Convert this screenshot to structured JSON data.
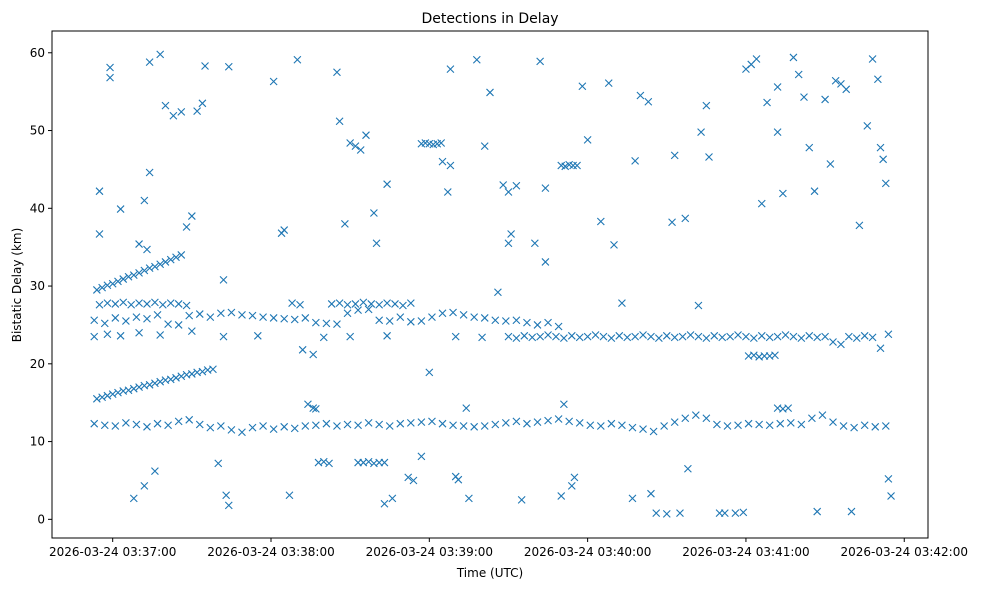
{
  "chart_data": {
    "type": "scatter",
    "title": "Detections in Delay",
    "xlabel": "Time (UTC)",
    "ylabel": "Bistatic Delay (km)",
    "x_units": "seconds relative to 2026-03-24 03:37:00",
    "xlim": [
      -23,
      309
    ],
    "ylim": [
      -2.4,
      62.8
    ],
    "x_ticks": [
      0,
      60,
      120,
      180,
      240,
      300
    ],
    "x_tick_labels": [
      "2026-03-24 03:37:00",
      "2026-03-24 03:38:00",
      "2026-03-24 03:39:00",
      "2026-03-24 03:40:00",
      "2026-03-24 03:41:00",
      "2026-03-24 03:42:00"
    ],
    "y_ticks": [
      0,
      10,
      20,
      30,
      40,
      50,
      60
    ],
    "y_tick_labels": [
      "0",
      "10",
      "20",
      "30",
      "40",
      "50",
      "60"
    ],
    "marker": "x",
    "color": "#1f77b4",
    "grid": false,
    "points": [
      [
        -6,
        15.5
      ],
      [
        -4,
        15.7
      ],
      [
        -2,
        15.9
      ],
      [
        0,
        16.1
      ],
      [
        2,
        16.3
      ],
      [
        4,
        16.5
      ],
      [
        6,
        16.6
      ],
      [
        8,
        16.8
      ],
      [
        10,
        17.0
      ],
      [
        12,
        17.2
      ],
      [
        14,
        17.3
      ],
      [
        16,
        17.5
      ],
      [
        18,
        17.7
      ],
      [
        20,
        17.9
      ],
      [
        22,
        18.0
      ],
      [
        24,
        18.2
      ],
      [
        26,
        18.4
      ],
      [
        28,
        18.6
      ],
      [
        30,
        18.7
      ],
      [
        32,
        18.9
      ],
      [
        34,
        19.0
      ],
      [
        36,
        19.2
      ],
      [
        38,
        19.3
      ],
      [
        -6,
        29.5
      ],
      [
        -4,
        29.8
      ],
      [
        -2,
        30.1
      ],
      [
        0,
        30.3
      ],
      [
        2,
        30.6
      ],
      [
        4,
        30.9
      ],
      [
        6,
        31.2
      ],
      [
        8,
        31.4
      ],
      [
        10,
        31.7
      ],
      [
        12,
        32.0
      ],
      [
        14,
        32.3
      ],
      [
        16,
        32.5
      ],
      [
        18,
        32.8
      ],
      [
        20,
        33.1
      ],
      [
        22,
        33.4
      ],
      [
        24,
        33.7
      ],
      [
        26,
        34.0
      ],
      [
        -7,
        12.3
      ],
      [
        -3,
        12.1
      ],
      [
        1,
        12.0
      ],
      [
        5,
        12.4
      ],
      [
        9,
        12.2
      ],
      [
        13,
        11.9
      ],
      [
        17,
        12.3
      ],
      [
        21,
        12.1
      ],
      [
        25,
        12.6
      ],
      [
        29,
        12.8
      ],
      [
        33,
        12.2
      ],
      [
        37,
        11.8
      ],
      [
        41,
        12.0
      ],
      [
        45,
        11.5
      ],
      [
        49,
        11.2
      ],
      [
        53,
        11.8
      ],
      [
        57,
        12.0
      ],
      [
        61,
        11.6
      ],
      [
        65,
        11.9
      ],
      [
        69,
        11.7
      ],
      [
        73,
        12.0
      ],
      [
        77,
        12.1
      ],
      [
        81,
        12.3
      ],
      [
        85,
        12.0
      ],
      [
        89,
        12.2
      ],
      [
        93,
        12.1
      ],
      [
        97,
        12.4
      ],
      [
        101,
        12.2
      ],
      [
        105,
        12.0
      ],
      [
        109,
        12.3
      ],
      [
        113,
        12.4
      ],
      [
        117,
        12.5
      ],
      [
        121,
        12.6
      ],
      [
        125,
        12.3
      ],
      [
        129,
        12.1
      ],
      [
        133,
        12.0
      ],
      [
        137,
        11.9
      ],
      [
        141,
        12.0
      ],
      [
        145,
        12.2
      ],
      [
        149,
        12.4
      ],
      [
        153,
        12.6
      ],
      [
        157,
        12.3
      ],
      [
        161,
        12.5
      ],
      [
        165,
        12.7
      ],
      [
        169,
        12.9
      ],
      [
        173,
        12.6
      ],
      [
        177,
        12.4
      ],
      [
        181,
        12.1
      ],
      [
        185,
        12.0
      ],
      [
        189,
        12.3
      ],
      [
        193,
        12.1
      ],
      [
        197,
        11.8
      ],
      [
        201,
        11.6
      ],
      [
        205,
        11.3
      ],
      [
        209,
        12.0
      ],
      [
        213,
        12.5
      ],
      [
        217,
        13.0
      ],
      [
        221,
        13.4
      ],
      [
        225,
        13.0
      ],
      [
        229,
        12.2
      ],
      [
        233,
        12.0
      ],
      [
        237,
        12.1
      ],
      [
        241,
        12.3
      ],
      [
        245,
        12.2
      ],
      [
        249,
        12.1
      ],
      [
        253,
        12.3
      ],
      [
        257,
        12.4
      ],
      [
        261,
        12.2
      ],
      [
        265,
        13.0
      ],
      [
        269,
        13.4
      ],
      [
        273,
        12.5
      ],
      [
        277,
        12.0
      ],
      [
        281,
        11.8
      ],
      [
        285,
        12.1
      ],
      [
        289,
        11.9
      ],
      [
        293,
        12.0
      ],
      [
        -7,
        25.6
      ],
      [
        -3,
        25.2
      ],
      [
        1,
        25.9
      ],
      [
        5,
        25.5
      ],
      [
        9,
        26.0
      ],
      [
        13,
        25.8
      ],
      [
        17,
        26.3
      ],
      [
        21,
        25.1
      ],
      [
        25,
        25.0
      ],
      [
        29,
        26.2
      ],
      [
        33,
        26.4
      ],
      [
        37,
        26.0
      ],
      [
        41,
        26.5
      ],
      [
        45,
        26.6
      ],
      [
        49,
        26.3
      ],
      [
        53,
        26.2
      ],
      [
        57,
        26.0
      ],
      [
        61,
        25.9
      ],
      [
        65,
        25.8
      ],
      [
        69,
        25.7
      ],
      [
        73,
        25.9
      ],
      [
        77,
        25.3
      ],
      [
        81,
        25.2
      ],
      [
        85,
        25.1
      ],
      [
        89,
        26.5
      ],
      [
        93,
        26.9
      ],
      [
        97,
        27.0
      ],
      [
        101,
        25.6
      ],
      [
        105,
        25.5
      ],
      [
        109,
        26.0
      ],
      [
        113,
        25.4
      ],
      [
        117,
        25.5
      ],
      [
        121,
        26.0
      ],
      [
        125,
        26.5
      ],
      [
        129,
        26.6
      ],
      [
        133,
        26.3
      ],
      [
        137,
        26.0
      ],
      [
        141,
        25.9
      ],
      [
        145,
        25.6
      ],
      [
        149,
        25.5
      ],
      [
        153,
        25.6
      ],
      [
        157,
        25.3
      ],
      [
        161,
        25.0
      ],
      [
        165,
        25.3
      ],
      [
        169,
        24.8
      ],
      [
        -7,
        23.5
      ],
      [
        -2,
        23.8
      ],
      [
        3,
        23.6
      ],
      [
        10,
        24.0
      ],
      [
        18,
        23.7
      ],
      [
        30,
        24.2
      ],
      [
        42,
        23.5
      ],
      [
        55,
        23.6
      ],
      [
        80,
        23.4
      ],
      [
        90,
        23.5
      ],
      [
        104,
        23.6
      ],
      [
        130,
        23.5
      ],
      [
        140,
        23.4
      ],
      [
        150,
        23.5
      ],
      [
        153,
        23.3
      ],
      [
        156,
        23.6
      ],
      [
        159,
        23.4
      ],
      [
        162,
        23.5
      ],
      [
        165,
        23.7
      ],
      [
        168,
        23.5
      ],
      [
        171,
        23.3
      ],
      [
        174,
        23.6
      ],
      [
        177,
        23.4
      ],
      [
        180,
        23.5
      ],
      [
        183,
        23.7
      ],
      [
        186,
        23.5
      ],
      [
        189,
        23.3
      ],
      [
        192,
        23.6
      ],
      [
        195,
        23.4
      ],
      [
        198,
        23.5
      ],
      [
        201,
        23.7
      ],
      [
        204,
        23.5
      ],
      [
        207,
        23.3
      ],
      [
        210,
        23.6
      ],
      [
        213,
        23.4
      ],
      [
        216,
        23.5
      ],
      [
        219,
        23.7
      ],
      [
        222,
        23.5
      ],
      [
        225,
        23.3
      ],
      [
        228,
        23.6
      ],
      [
        231,
        23.4
      ],
      [
        234,
        23.5
      ],
      [
        237,
        23.7
      ],
      [
        240,
        23.5
      ],
      [
        243,
        23.3
      ],
      [
        246,
        23.6
      ],
      [
        249,
        23.4
      ],
      [
        252,
        23.5
      ],
      [
        255,
        23.7
      ],
      [
        258,
        23.5
      ],
      [
        261,
        23.3
      ],
      [
        264,
        23.6
      ],
      [
        267,
        23.4
      ],
      [
        270,
        23.5
      ],
      [
        273,
        22.8
      ],
      [
        276,
        22.5
      ],
      [
        279,
        23.5
      ],
      [
        282,
        23.3
      ],
      [
        285,
        23.6
      ],
      [
        288,
        23.4
      ],
      [
        291,
        22.0
      ],
      [
        294,
        23.8
      ],
      [
        -5,
        27.6
      ],
      [
        -2,
        27.8
      ],
      [
        1,
        27.7
      ],
      [
        4,
        27.9
      ],
      [
        7,
        27.6
      ],
      [
        10,
        27.8
      ],
      [
        13,
        27.7
      ],
      [
        16,
        27.9
      ],
      [
        19,
        27.6
      ],
      [
        22,
        27.8
      ],
      [
        25,
        27.7
      ],
      [
        28,
        27.5
      ],
      [
        68,
        27.8
      ],
      [
        71,
        27.6
      ],
      [
        83,
        27.7
      ],
      [
        86,
        27.8
      ],
      [
        89,
        27.6
      ],
      [
        92,
        27.7
      ],
      [
        95,
        27.9
      ],
      [
        98,
        27.7
      ],
      [
        101,
        27.6
      ],
      [
        104,
        27.8
      ],
      [
        107,
        27.7
      ],
      [
        110,
        27.5
      ],
      [
        113,
        27.8
      ],
      [
        117,
        48.3
      ],
      [
        118.5,
        48.4
      ],
      [
        120,
        48.3
      ],
      [
        121.5,
        48.2
      ],
      [
        123,
        48.3
      ],
      [
        124.5,
        48.4
      ],
      [
        170,
        45.5
      ],
      [
        171.5,
        45.4
      ],
      [
        173,
        45.6
      ],
      [
        174.5,
        45.5
      ],
      [
        176,
        45.5
      ],
      [
        78,
        7.3
      ],
      [
        80,
        7.4
      ],
      [
        82,
        7.2
      ],
      [
        93,
        7.3
      ],
      [
        95,
        7.3
      ],
      [
        97,
        7.4
      ],
      [
        99,
        7.2
      ],
      [
        101,
        7.3
      ],
      [
        103,
        7.3
      ],
      [
        241,
        21.0
      ],
      [
        243,
        21.1
      ],
      [
        245,
        20.9
      ],
      [
        247,
        21.0
      ],
      [
        249,
        21.0
      ],
      [
        251,
        21.1
      ],
      [
        76,
        14.3
      ],
      [
        77,
        14.2
      ],
      [
        252,
        14.3
      ],
      [
        254,
        14.2
      ],
      [
        256,
        14.3
      ],
      [
        -5,
        42.2
      ],
      [
        -5,
        36.7
      ],
      [
        -1,
        58.1
      ],
      [
        -1,
        56.8
      ],
      [
        3,
        39.9
      ],
      [
        10,
        35.4
      ],
      [
        12,
        41.0
      ],
      [
        13,
        34.7
      ],
      [
        14,
        44.6
      ],
      [
        12,
        4.3
      ],
      [
        16,
        6.2
      ],
      [
        8,
        2.7
      ],
      [
        20,
        53.2
      ],
      [
        23,
        51.9
      ],
      [
        26,
        52.4
      ],
      [
        28,
        37.6
      ],
      [
        30,
        39.0
      ],
      [
        18,
        59.8
      ],
      [
        14,
        58.8
      ],
      [
        32,
        52.5
      ],
      [
        34,
        53.5
      ],
      [
        35,
        58.3
      ],
      [
        44,
        58.2
      ],
      [
        42,
        30.8
      ],
      [
        40,
        7.2
      ],
      [
        43,
        3.1
      ],
      [
        44,
        1.8
      ],
      [
        61,
        56.3
      ],
      [
        64,
        36.8
      ],
      [
        65,
        37.2
      ],
      [
        67,
        3.1
      ],
      [
        70,
        59.1
      ],
      [
        72,
        21.8
      ],
      [
        74,
        14.8
      ],
      [
        76,
        21.2
      ],
      [
        85,
        57.5
      ],
      [
        86,
        51.2
      ],
      [
        88,
        38.0
      ],
      [
        90,
        48.4
      ],
      [
        92,
        48.0
      ],
      [
        94,
        47.5
      ],
      [
        96,
        49.4
      ],
      [
        99,
        39.4
      ],
      [
        100,
        35.5
      ],
      [
        104,
        43.1
      ],
      [
        106,
        2.7
      ],
      [
        103,
        2.0
      ],
      [
        112,
        5.4
      ],
      [
        114,
        5.0
      ],
      [
        117,
        8.1
      ],
      [
        120,
        18.9
      ],
      [
        125,
        46.0
      ],
      [
        127,
        42.1
      ],
      [
        128,
        57.9
      ],
      [
        128,
        45.5
      ],
      [
        130,
        5.5
      ],
      [
        131,
        5.1
      ],
      [
        134,
        14.3
      ],
      [
        135,
        2.7
      ],
      [
        138,
        59.1
      ],
      [
        141,
        48.0
      ],
      [
        143,
        54.9
      ],
      [
        146,
        29.2
      ],
      [
        148,
        43.0
      ],
      [
        150,
        42.1
      ],
      [
        150,
        35.5
      ],
      [
        151,
        36.7
      ],
      [
        153,
        42.9
      ],
      [
        155,
        2.5
      ],
      [
        160,
        35.5
      ],
      [
        162,
        58.9
      ],
      [
        164,
        42.6
      ],
      [
        164,
        33.1
      ],
      [
        170,
        3.0
      ],
      [
        171,
        14.8
      ],
      [
        174,
        4.3
      ],
      [
        175,
        5.4
      ],
      [
        178,
        55.7
      ],
      [
        180,
        48.8
      ],
      [
        185,
        38.3
      ],
      [
        188,
        56.1
      ],
      [
        190,
        35.3
      ],
      [
        193,
        27.8
      ],
      [
        197,
        2.7
      ],
      [
        198,
        46.1
      ],
      [
        200,
        54.5
      ],
      [
        203,
        53.7
      ],
      [
        204,
        3.3
      ],
      [
        206,
        0.8
      ],
      [
        210,
        0.7
      ],
      [
        212,
        38.2
      ],
      [
        213,
        46.8
      ],
      [
        215,
        0.8
      ],
      [
        217,
        38.7
      ],
      [
        218,
        6.5
      ],
      [
        222,
        27.5
      ],
      [
        223,
        49.8
      ],
      [
        225,
        53.2
      ],
      [
        226,
        46.6
      ],
      [
        230,
        0.8
      ],
      [
        232,
        0.8
      ],
      [
        236,
        0.8
      ],
      [
        239,
        0.9
      ],
      [
        240,
        57.9
      ],
      [
        242,
        58.5
      ],
      [
        244,
        59.2
      ],
      [
        246,
        40.6
      ],
      [
        248,
        53.6
      ],
      [
        252,
        55.6
      ],
      [
        252,
        49.8
      ],
      [
        254,
        41.9
      ],
      [
        258,
        59.4
      ],
      [
        260,
        57.2
      ],
      [
        262,
        54.3
      ],
      [
        264,
        47.8
      ],
      [
        266,
        42.2
      ],
      [
        267,
        1.0
      ],
      [
        270,
        54.0
      ],
      [
        272,
        45.7
      ],
      [
        274,
        56.4
      ],
      [
        276,
        56.0
      ],
      [
        278,
        55.3
      ],
      [
        280,
        1.0
      ],
      [
        283,
        37.8
      ],
      [
        286,
        50.6
      ],
      [
        288,
        59.2
      ],
      [
        290,
        56.6
      ],
      [
        291,
        47.8
      ],
      [
        292,
        46.3
      ],
      [
        293,
        43.2
      ],
      [
        294,
        5.2
      ],
      [
        295,
        3.0
      ]
    ]
  }
}
